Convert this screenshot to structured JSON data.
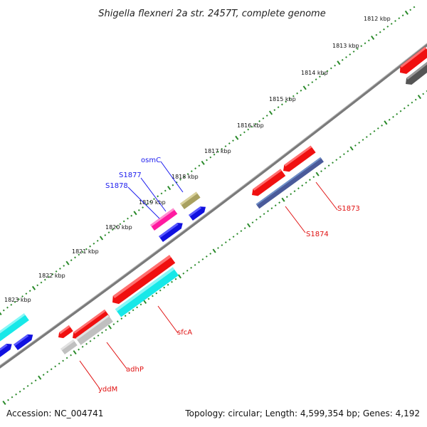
{
  "title": "Shigella flexneri 2a str. 2457T, complete genome",
  "footer": {
    "accession": "Accession: NC_004741",
    "topology": "Topology: circular; Length: 4,599,354 bp; Genes: 4,192"
  },
  "ticks": [
    "1812 kbp",
    "1813 kbp",
    "1814 kbp",
    "1815 kbp",
    "1816 kbp",
    "1817 kbp",
    "1818 kbp",
    "1819 kbp",
    "1820 kbp",
    "1821 kbp",
    "1822 kbp",
    "1823 kbp"
  ],
  "colors": {
    "forward_label": "#1a1aee",
    "reverse_label": "#e01010",
    "tick": "#2a8a2a",
    "backbone": "#808080"
  },
  "labels": {
    "osmC": "osmC",
    "S1877": "S1877",
    "S1878": "S1878",
    "S1873": "S1873",
    "S1874": "S1874",
    "sfcA": "sfcA",
    "adhP": "adhP",
    "yddM": "yddM"
  }
}
